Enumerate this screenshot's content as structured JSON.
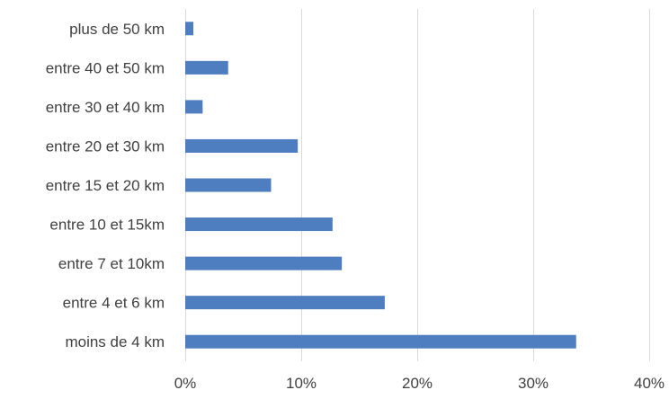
{
  "chart_data": {
    "type": "bar",
    "orientation": "horizontal",
    "title": "",
    "xlabel": "",
    "ylabel": "",
    "categories": [
      "plus de 50 km",
      "entre 40 et 50 km",
      "entre 30 et 40 km",
      "entre 20 et 30 km",
      "entre 15 et 20 km",
      "entre 10 et 15km",
      "entre 7 et 10km",
      "entre 4 et 6 km",
      "moins de 4 km"
    ],
    "values": [
      0.7,
      3.7,
      1.5,
      9.7,
      7.4,
      12.7,
      13.5,
      17.2,
      33.7
    ],
    "xlim": [
      0,
      40
    ],
    "xticks": [
      0,
      10,
      20,
      30,
      40
    ],
    "xtick_labels": [
      "0%",
      "10%",
      "20%",
      "30%",
      "40%"
    ],
    "grid": "vertical",
    "legend": "none",
    "bar_color": "#4e7dc0",
    "grid_color": "#d9d9d9"
  }
}
